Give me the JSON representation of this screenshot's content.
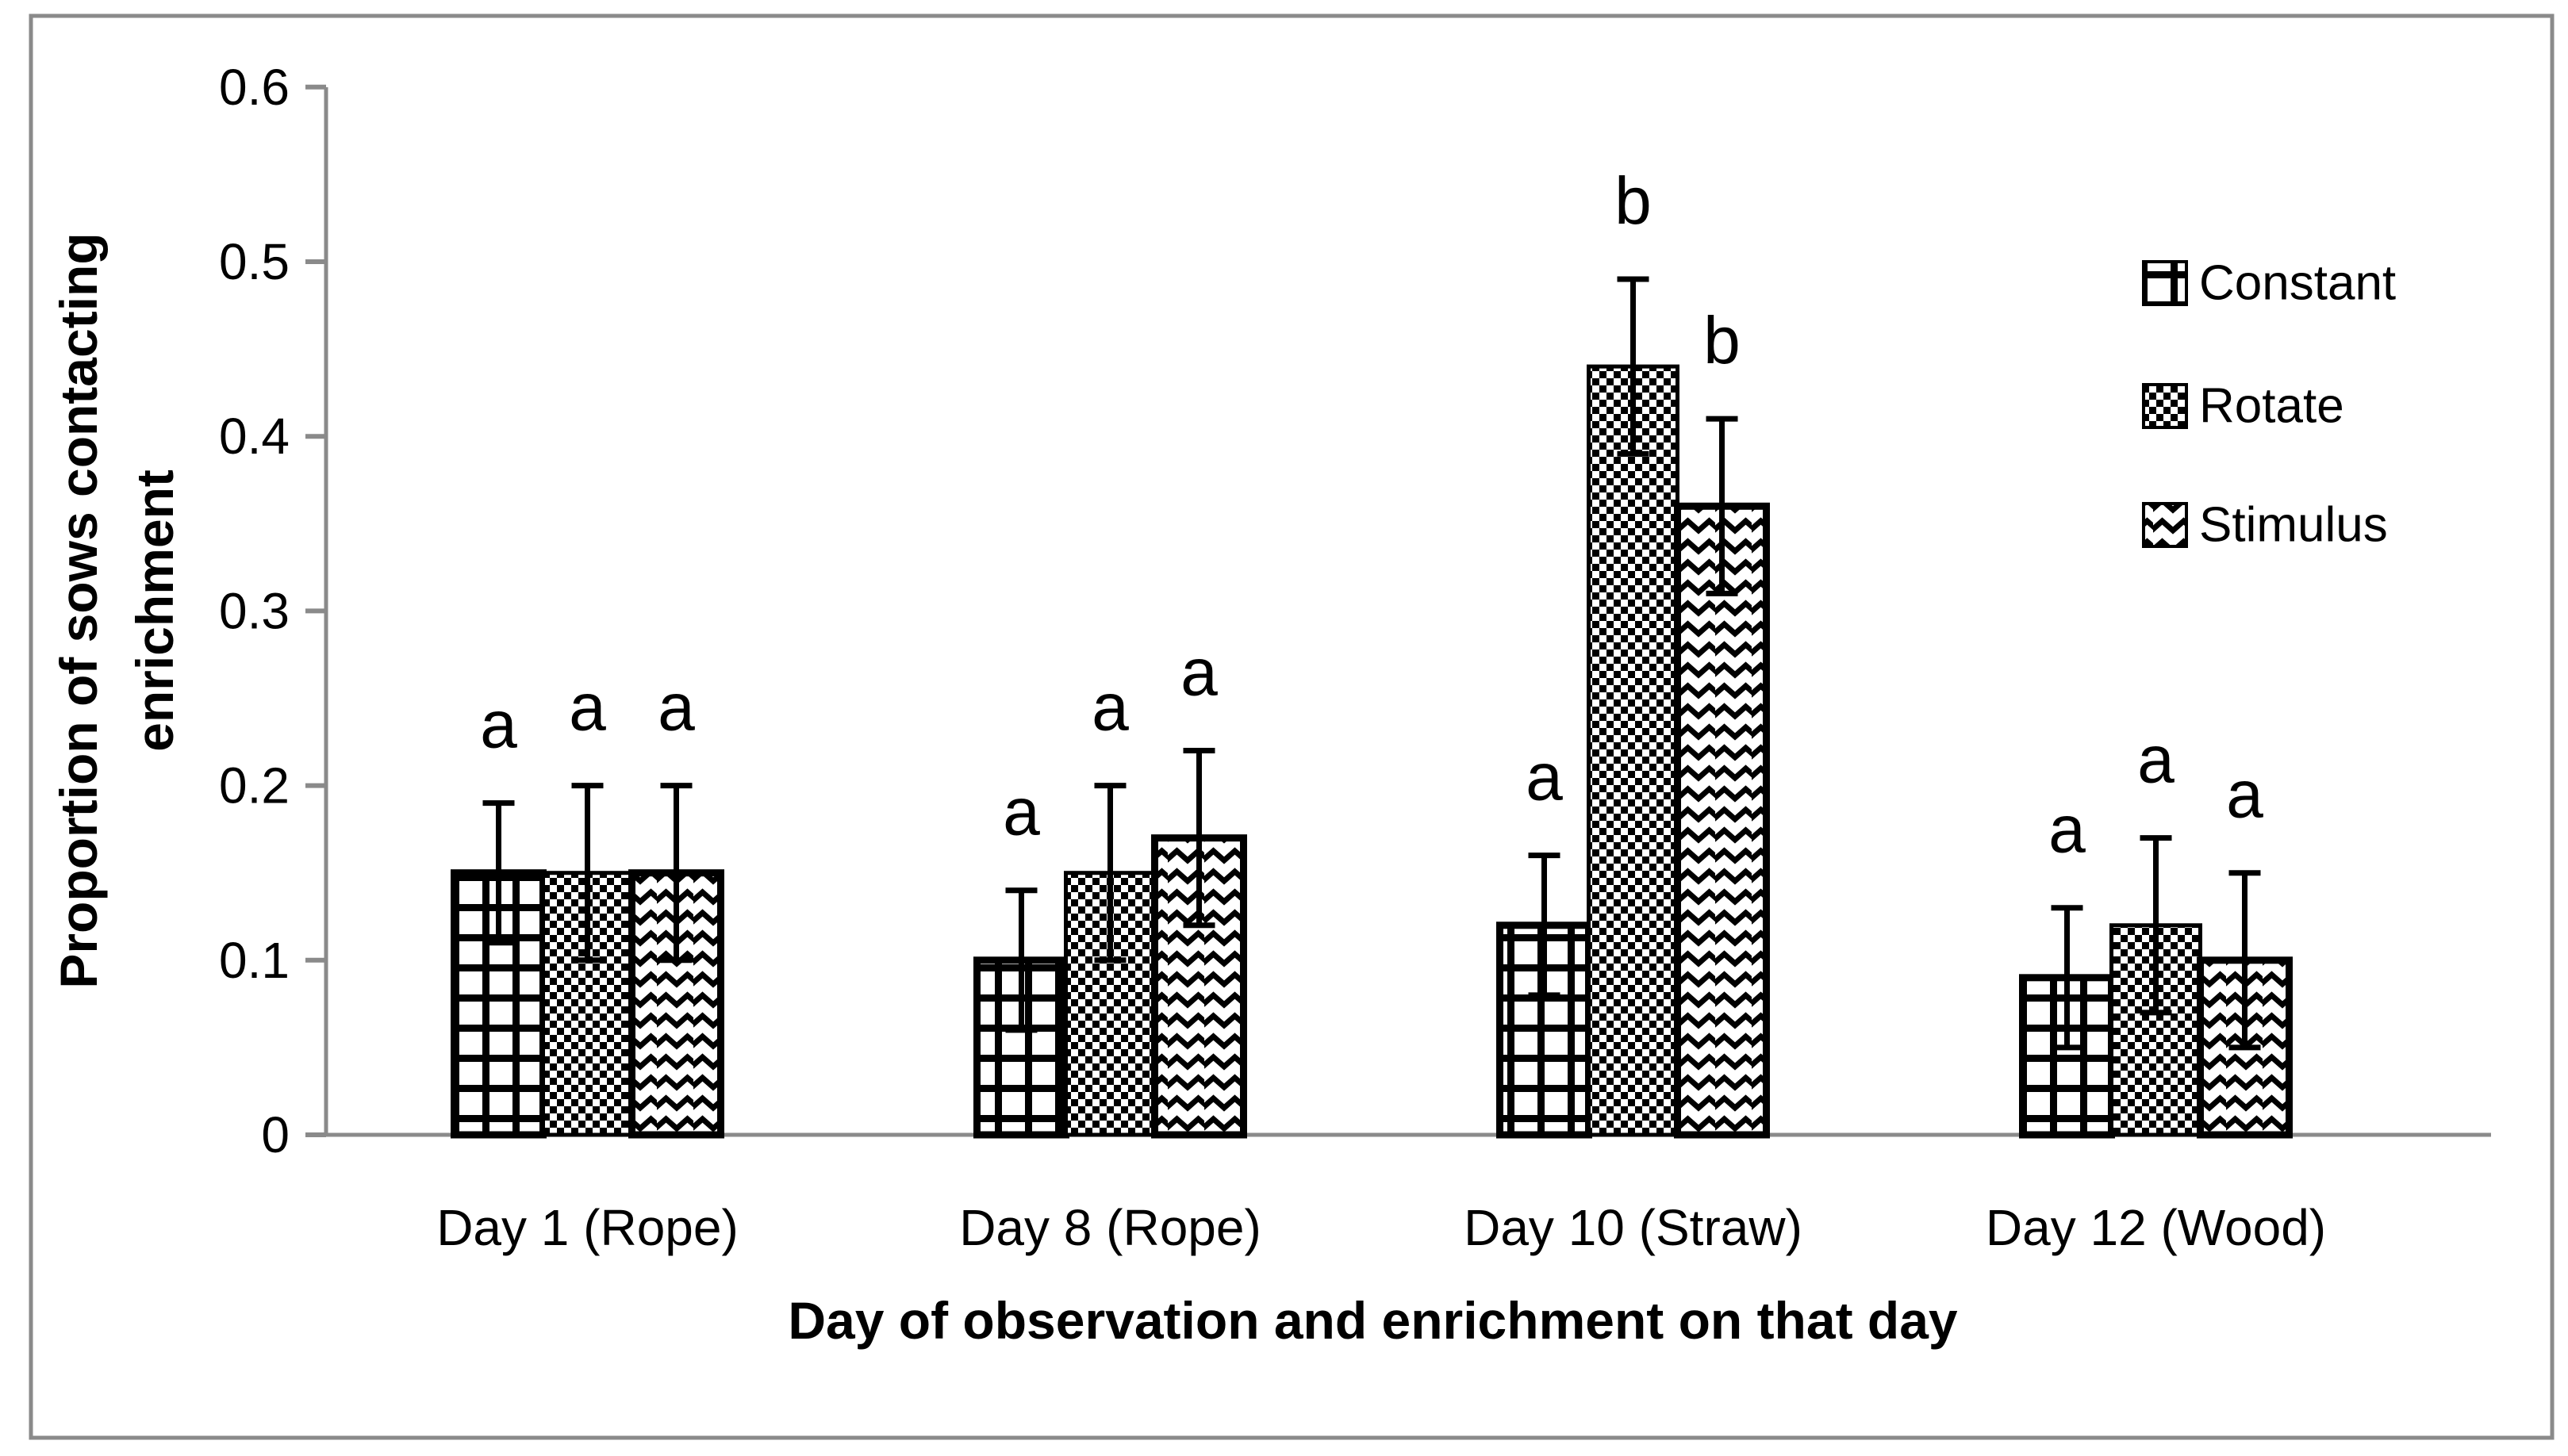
{
  "chart_data": {
    "type": "bar",
    "title": "",
    "xlabel": "Day of observation and enrichment on that day",
    "ylabel_lines": [
      "Proportion of sows contacting",
      "enrichment"
    ],
    "ylim": [
      0,
      0.6
    ],
    "ytick_step": 0.1,
    "ytick_labels": [
      "0",
      "0.1",
      "0.2",
      "0.3",
      "0.4",
      "0.5",
      "0.6"
    ],
    "grid": false,
    "legend_position": "right-inside",
    "categories": [
      "Day 1 (Rope)",
      "Day 8 (Rope)",
      "Day 10 (Straw)",
      "Day 12 (Wood)"
    ],
    "series": [
      {
        "name": "Constant",
        "pattern": "grid",
        "values": [
          0.15,
          0.1,
          0.12,
          0.09
        ],
        "errors": [
          0.04,
          0.04,
          0.04,
          0.04
        ],
        "letters": [
          "a",
          "a",
          "a",
          "a"
        ]
      },
      {
        "name": "Rotate",
        "pattern": "checker",
        "values": [
          0.15,
          0.15,
          0.44,
          0.12
        ],
        "errors": [
          0.05,
          0.05,
          0.05,
          0.05
        ],
        "letters": [
          "a",
          "a",
          "b",
          "a"
        ]
      },
      {
        "name": "Stimulus",
        "pattern": "wave",
        "values": [
          0.15,
          0.17,
          0.36,
          0.1
        ],
        "errors": [
          0.05,
          0.05,
          0.05,
          0.05
        ],
        "letters": [
          "a",
          "a",
          "b",
          "a"
        ]
      }
    ],
    "colors": {
      "ink": "#000000",
      "axis": "#8a8a8a",
      "background": "#ffffff",
      "border": "#8a8a8a"
    }
  }
}
